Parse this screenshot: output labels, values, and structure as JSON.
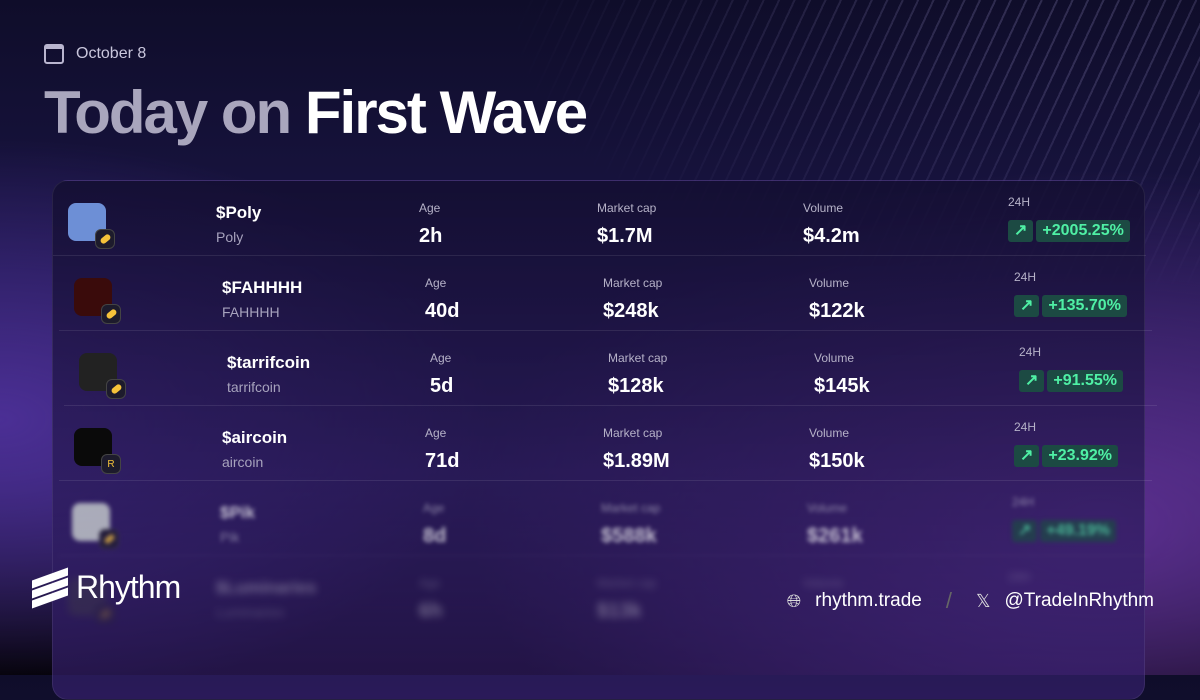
{
  "header": {
    "date": "October 8",
    "title_part1": "Today on",
    "title_part2": "First Wave"
  },
  "labels": {
    "age": "Age",
    "market_cap": "Market cap",
    "volume": "Volume",
    "change": "24H"
  },
  "tokens": [
    {
      "ticker": "$Poly",
      "name": "Poly",
      "age": "2h",
      "market_cap": "$1.7M",
      "volume": "$4.2m",
      "change": "+2005.25%",
      "avatar_color": "#6d8fd6",
      "badge": "pill"
    },
    {
      "ticker": "$FAHHHH",
      "name": "FAHHHH",
      "age": "40d",
      "market_cap": "$248k",
      "volume": "$122k",
      "change": "+135.70%",
      "avatar_color": "#3a0b0b",
      "badge": "pill"
    },
    {
      "ticker": "$tarrifcoin",
      "name": "tarrifcoin",
      "age": "5d",
      "market_cap": "$128k",
      "volume": "$145k",
      "change": "+91.55%",
      "avatar_color": "#222",
      "badge": "pill"
    },
    {
      "ticker": "$aircoin",
      "name": "aircoin",
      "age": "71d",
      "market_cap": "$1.89M",
      "volume": "$150k",
      "change": "+23.92%",
      "avatar_color": "#0a0a0a",
      "badge": "R"
    },
    {
      "ticker": "$Pik",
      "name": "Pik",
      "age": "8d",
      "market_cap": "$588k",
      "volume": "$261k",
      "change": "+49.19%",
      "avatar_color": "#dfe8df",
      "badge": "pill"
    },
    {
      "ticker": "$Luminaries",
      "name": "Luminaries",
      "age": "6h",
      "market_cap": "$13k",
      "volume": "",
      "change": "",
      "avatar_color": "#444",
      "badge": "pill"
    }
  ],
  "footer": {
    "brand": "Rhythm",
    "website": "rhythm.trade",
    "twitter": "@TradeInRhythm",
    "separator": "/"
  },
  "colors": {
    "accent_green": "#4ff0a5",
    "change_bg": "#1c4a43"
  }
}
